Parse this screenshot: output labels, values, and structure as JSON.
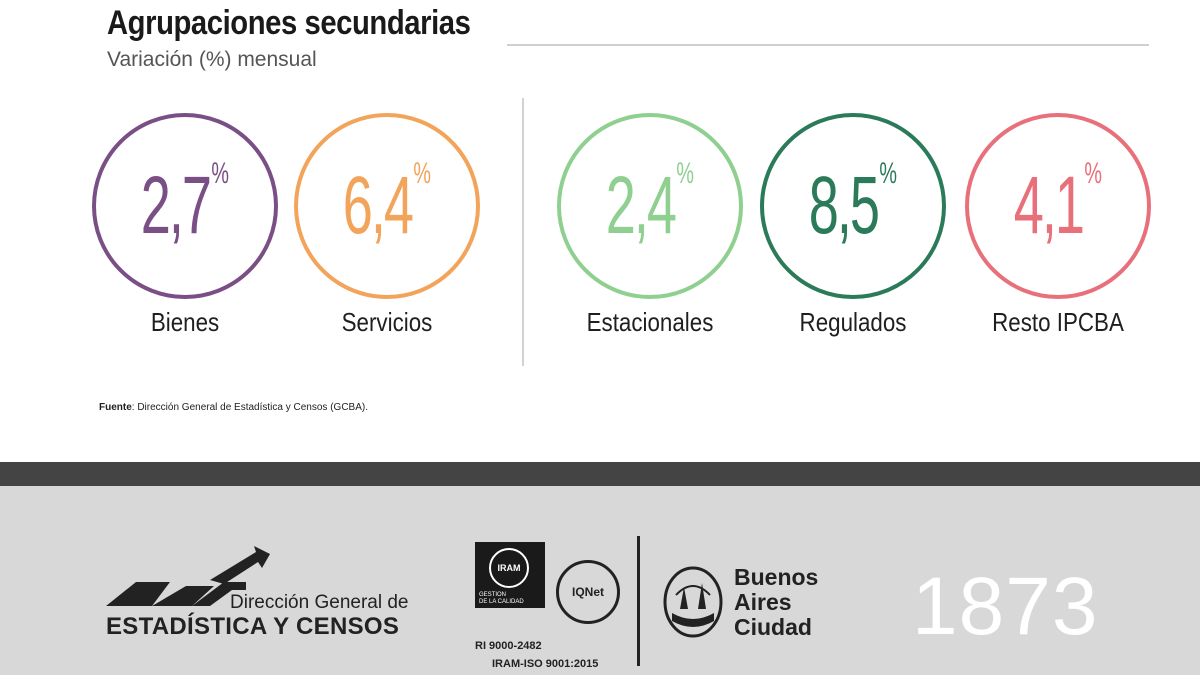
{
  "header": {
    "title": "Agrupaciones secundarias",
    "subtitle": "Variación (%) mensual"
  },
  "metrics": [
    {
      "value": "2,7",
      "unit": "%",
      "label": "Bienes",
      "color": "#7a4f86"
    },
    {
      "value": "6,4",
      "unit": "%",
      "label": "Servicios",
      "color": "#f2a45a"
    },
    {
      "value": "2,4",
      "unit": "%",
      "label": "Estacionales",
      "color": "#8fd090"
    },
    {
      "value": "8,5",
      "unit": "%",
      "label": "Regulados",
      "color": "#2b7a5a"
    },
    {
      "value": "4,1",
      "unit": "%",
      "label": "Resto IPCBA",
      "color": "#e8707a"
    }
  ],
  "source": {
    "label": "Fuente",
    "text": ": Dirección General de Estadística y Censos (GCBA)."
  },
  "footer": {
    "dgec_line1": "Dirección General de",
    "dgec_line2": "ESTADÍSTICA Y CENSOS",
    "iram_logo": "IRAM",
    "iram_sub_1": "GESTION",
    "iram_sub_2": "DE LA CALIDAD",
    "iram_code": "RI 9000-2482",
    "iram_iso": "IRAM-ISO 9001:2015",
    "iqnet_text": "IQNet",
    "ba_line1": "Buenos",
    "ba_line2": "Aires",
    "ba_line3": "Ciudad",
    "year": "1873"
  }
}
